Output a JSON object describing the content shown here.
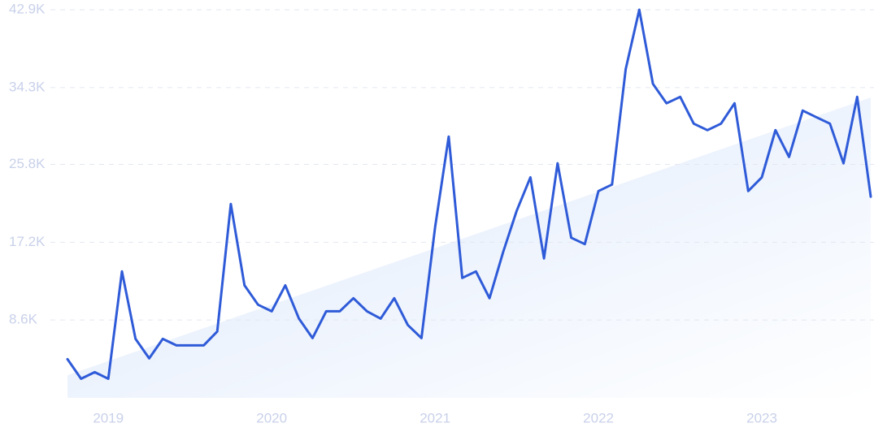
{
  "chart_data": {
    "type": "line",
    "categories": [
      null,
      null,
      null,
      "2019",
      null,
      null,
      null,
      null,
      null,
      null,
      null,
      null,
      null,
      null,
      null,
      "2020",
      null,
      null,
      null,
      null,
      null,
      null,
      null,
      null,
      null,
      null,
      null,
      "2021",
      null,
      null,
      null,
      null,
      null,
      null,
      null,
      null,
      null,
      null,
      null,
      "2022",
      null,
      null,
      null,
      null,
      null,
      null,
      null,
      null,
      null,
      null,
      null,
      "2023",
      null,
      null,
      null,
      null,
      null,
      null,
      null,
      null
    ],
    "series": [
      {
        "color": "#2f5bd8",
        "values": [
          4270,
          2110,
          2840,
          2110,
          13970,
          6520,
          4360,
          6520,
          5800,
          5800,
          5800,
          7330,
          21420,
          12440,
          10290,
          9570,
          12440,
          8760,
          6610,
          9570,
          9570,
          11010,
          9570,
          8760,
          11010,
          8050,
          6610,
          18820,
          28880,
          13260,
          13970,
          11010,
          16130,
          20700,
          24380,
          15410,
          25930,
          17700,
          16990,
          22860,
          23580,
          36330,
          42900,
          34710,
          32560,
          33270,
          30310,
          29590,
          30310,
          32560,
          22860,
          24380,
          29590,
          26630,
          31750,
          31030,
          30310,
          25930,
          33270,
          22230
        ]
      }
    ],
    "trend": {
      "start": 2500,
      "end": 33200,
      "color": "#dce8fb"
    },
    "ylim": [
      0,
      42900
    ],
    "yticks": [
      {
        "value": 8600,
        "label": "8.6K"
      },
      {
        "value": 17200,
        "label": "17.2K"
      },
      {
        "value": 25800,
        "label": "25.8K"
      },
      {
        "value": 34300,
        "label": "34.3K"
      },
      {
        "value": 42900,
        "label": "42.9K"
      }
    ],
    "grid": true
  }
}
